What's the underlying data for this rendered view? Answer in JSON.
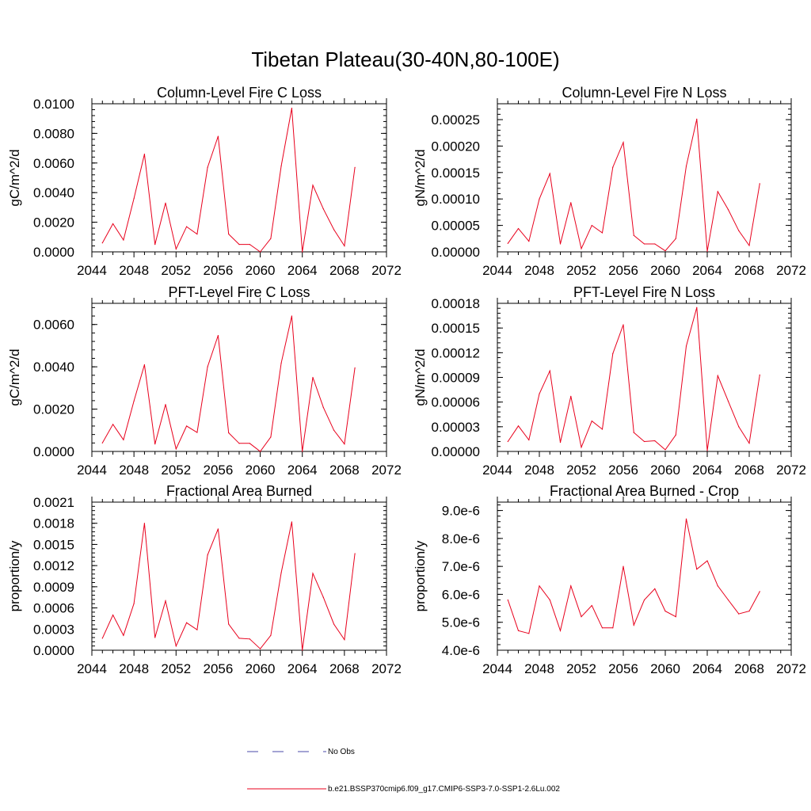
{
  "figure_title": "Tibetan Plateau(30-40N,80-100E)",
  "line_color": "#e8001c",
  "obs_color": "#4a4aa8",
  "x_years": [
    2045,
    2046,
    2047,
    2048,
    2049,
    2050,
    2051,
    2052,
    2053,
    2054,
    2055,
    2056,
    2057,
    2058,
    2059,
    2060,
    2061,
    2062,
    2063,
    2064,
    2065,
    2066,
    2067,
    2068,
    2069
  ],
  "chart_data": [
    {
      "type": "line",
      "title": "Column-Level Fire C Loss",
      "ylabel": "gC/m^2/d",
      "xlim": [
        2044,
        2072
      ],
      "xticks": [
        "2044",
        "2048",
        "2052",
        "2056",
        "2060",
        "2064",
        "2068",
        "2072"
      ],
      "ylim": [
        0,
        0.01
      ],
      "yticks": [
        "0.0000",
        "0.0020",
        "0.0040",
        "0.0060",
        "0.0080",
        "0.0100"
      ],
      "series": [
        {
          "values": [
            0.0006,
            0.0019,
            0.0008,
            0.0036,
            0.0066,
            0.0005,
            0.0033,
            0.0002,
            0.0017,
            0.0012,
            0.0057,
            0.0078,
            0.0012,
            0.0005,
            0.0005,
            0.0,
            0.0009,
            0.0058,
            0.0097,
            0.0,
            0.0045,
            0.0029,
            0.0015,
            0.0004,
            0.0057
          ]
        }
      ]
    },
    {
      "type": "line",
      "title": "Column-Level Fire N Loss",
      "ylabel": "gN/m^2/d",
      "xlim": [
        2044,
        2072
      ],
      "xticks": [
        "2044",
        "2048",
        "2052",
        "2056",
        "2060",
        "2064",
        "2068",
        "2072"
      ],
      "ylim": [
        0,
        0.00028
      ],
      "yticks": [
        "0.00000",
        "0.00005",
        "0.00010",
        "0.00015",
        "0.00020",
        "0.00025"
      ],
      "series": [
        {
          "values": [
            1.6e-05,
            4.4e-05,
            2e-05,
            0.0001,
            0.000148,
            1.5e-05,
            9.3e-05,
            6e-06,
            5e-05,
            3.6e-05,
            0.00016,
            0.000207,
            3.1e-05,
            1.5e-05,
            1.5e-05,
            2e-06,
            2.5e-05,
            0.000162,
            0.000251,
            1e-06,
            0.000114,
            8e-05,
            4e-05,
            1.2e-05,
            0.000129
          ]
        }
      ]
    },
    {
      "type": "line",
      "title": "PFT-Level Fire C Loss",
      "ylabel": "gC/m^2/d",
      "xlim": [
        2044,
        2072
      ],
      "xticks": [
        "2044",
        "2048",
        "2052",
        "2056",
        "2060",
        "2064",
        "2068",
        "2072"
      ],
      "ylim": [
        0,
        0.007
      ],
      "yticks": [
        "0.0000",
        "0.0020",
        "0.0040",
        "0.0060"
      ],
      "series": [
        {
          "values": [
            0.0004,
            0.00128,
            0.00055,
            0.00238,
            0.0041,
            0.00035,
            0.00222,
            0.00012,
            0.0012,
            0.0009,
            0.004,
            0.00548,
            0.00088,
            0.00038,
            0.00038,
            0.0,
            0.00068,
            0.00418,
            0.0064,
            0.0,
            0.0035,
            0.00208,
            0.001,
            0.00035,
            0.00395
          ]
        }
      ]
    },
    {
      "type": "line",
      "title": "PFT-Level Fire N Loss",
      "ylabel": "gN/m^2/d",
      "xlim": [
        2044,
        2072
      ],
      "xticks": [
        "2044",
        "2048",
        "2052",
        "2056",
        "2060",
        "2064",
        "2068",
        "2072"
      ],
      "ylim": [
        0,
        0.00018
      ],
      "yticks": [
        "0.00000",
        "0.00003",
        "0.00006",
        "0.00009",
        "0.00012",
        "0.00015",
        "0.00018"
      ],
      "series": [
        {
          "values": [
            1.2e-05,
            3.1e-05,
            1.4e-05,
            7e-05,
            9.8e-05,
            1.1e-05,
            6.7e-05,
            5e-06,
            3.7e-05,
            2.7e-05,
            0.000119,
            0.000154,
            2.3e-05,
            1.2e-05,
            1.3e-05,
            2e-06,
            2e-05,
            0.000128,
            0.000175,
            1e-06,
            9.2e-05,
            6.1e-05,
            3e-05,
            1e-05,
            9.3e-05
          ]
        }
      ]
    },
    {
      "type": "line",
      "title": "Fractional Area Burned",
      "ylabel": "proportion/y",
      "xlim": [
        2044,
        2072
      ],
      "xticks": [
        "2044",
        "2048",
        "2052",
        "2056",
        "2060",
        "2064",
        "2068",
        "2072"
      ],
      "ylim": [
        0,
        0.0021
      ],
      "yticks": [
        "0.0000",
        "0.0003",
        "0.0006",
        "0.0009",
        "0.0012",
        "0.0015",
        "0.0018",
        "0.0021"
      ],
      "series": [
        {
          "values": [
            0.00017,
            0.0005,
            0.00021,
            0.00066,
            0.0018,
            0.00018,
            0.0007,
            6e-05,
            0.00039,
            0.00029,
            0.00135,
            0.00172,
            0.00037,
            0.00017,
            0.00016,
            2e-05,
            0.00021,
            0.0011,
            0.00182,
            0.0,
            0.00109,
            0.00075,
            0.00037,
            0.00015,
            0.00137
          ]
        }
      ]
    },
    {
      "type": "line",
      "title": "Fractional Area Burned - Crop",
      "ylabel": "proportion/y",
      "xlim": [
        2044,
        2072
      ],
      "xticks": [
        "2044",
        "2048",
        "2052",
        "2056",
        "2060",
        "2064",
        "2068",
        "2072"
      ],
      "ylim": [
        4e-06,
        9.3e-06
      ],
      "yticks": [
        "4.0e-6",
        "5.0e-6",
        "6.0e-6",
        "7.0e-6",
        "8.0e-6",
        "9.0e-6"
      ],
      "series": [
        {
          "values": [
            5.8e-06,
            4.7e-06,
            4.6e-06,
            6.3e-06,
            5.8e-06,
            4.7e-06,
            6.3e-06,
            5.2e-06,
            5.6e-06,
            4.8e-06,
            4.8e-06,
            7e-06,
            4.9e-06,
            5.8e-06,
            6.2e-06,
            5.4e-06,
            5.2e-06,
            8.7e-06,
            6.9e-06,
            7.2e-06,
            6.3e-06,
            5.8e-06,
            5.3e-06,
            5.4e-06,
            6.1e-06
          ]
        }
      ]
    }
  ],
  "legend": {
    "obs_label": "No Obs",
    "model_label": "b.e21.BSSP370cmip6.f09_g17.CMIP6-SSP3-7.0-SSP1-2.6Lu.002"
  }
}
